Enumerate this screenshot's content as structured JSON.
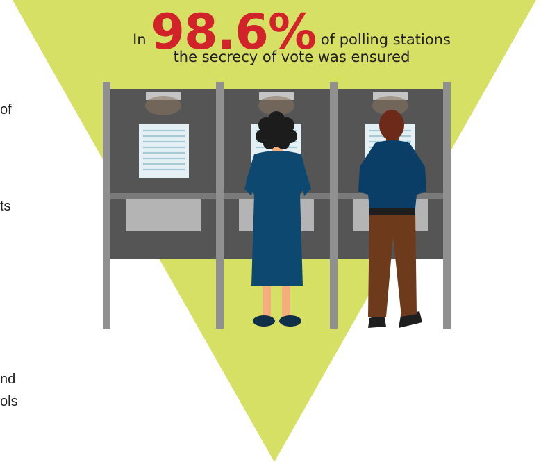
{
  "colors": {
    "triangle": "#d6e065",
    "highlight": "#d2232a",
    "booth_wall": "#555555",
    "pole": "#909090",
    "voter_woman_dress": "#0d4870",
    "voter_man_shirt": "#0b3e66",
    "voter_man_pants": "#6e3a1c"
  },
  "headline": {
    "prefix": "In",
    "percentage": "98.6%",
    "suffix": "of polling stations",
    "line2": "the secrecy of vote was ensured"
  },
  "left_fragments": [
    "of",
    "ts",
    "nd",
    "ols"
  ],
  "icons": {
    "booth": "voting-booth-icon",
    "woman": "woman-voter-icon",
    "man": "man-voter-icon"
  }
}
